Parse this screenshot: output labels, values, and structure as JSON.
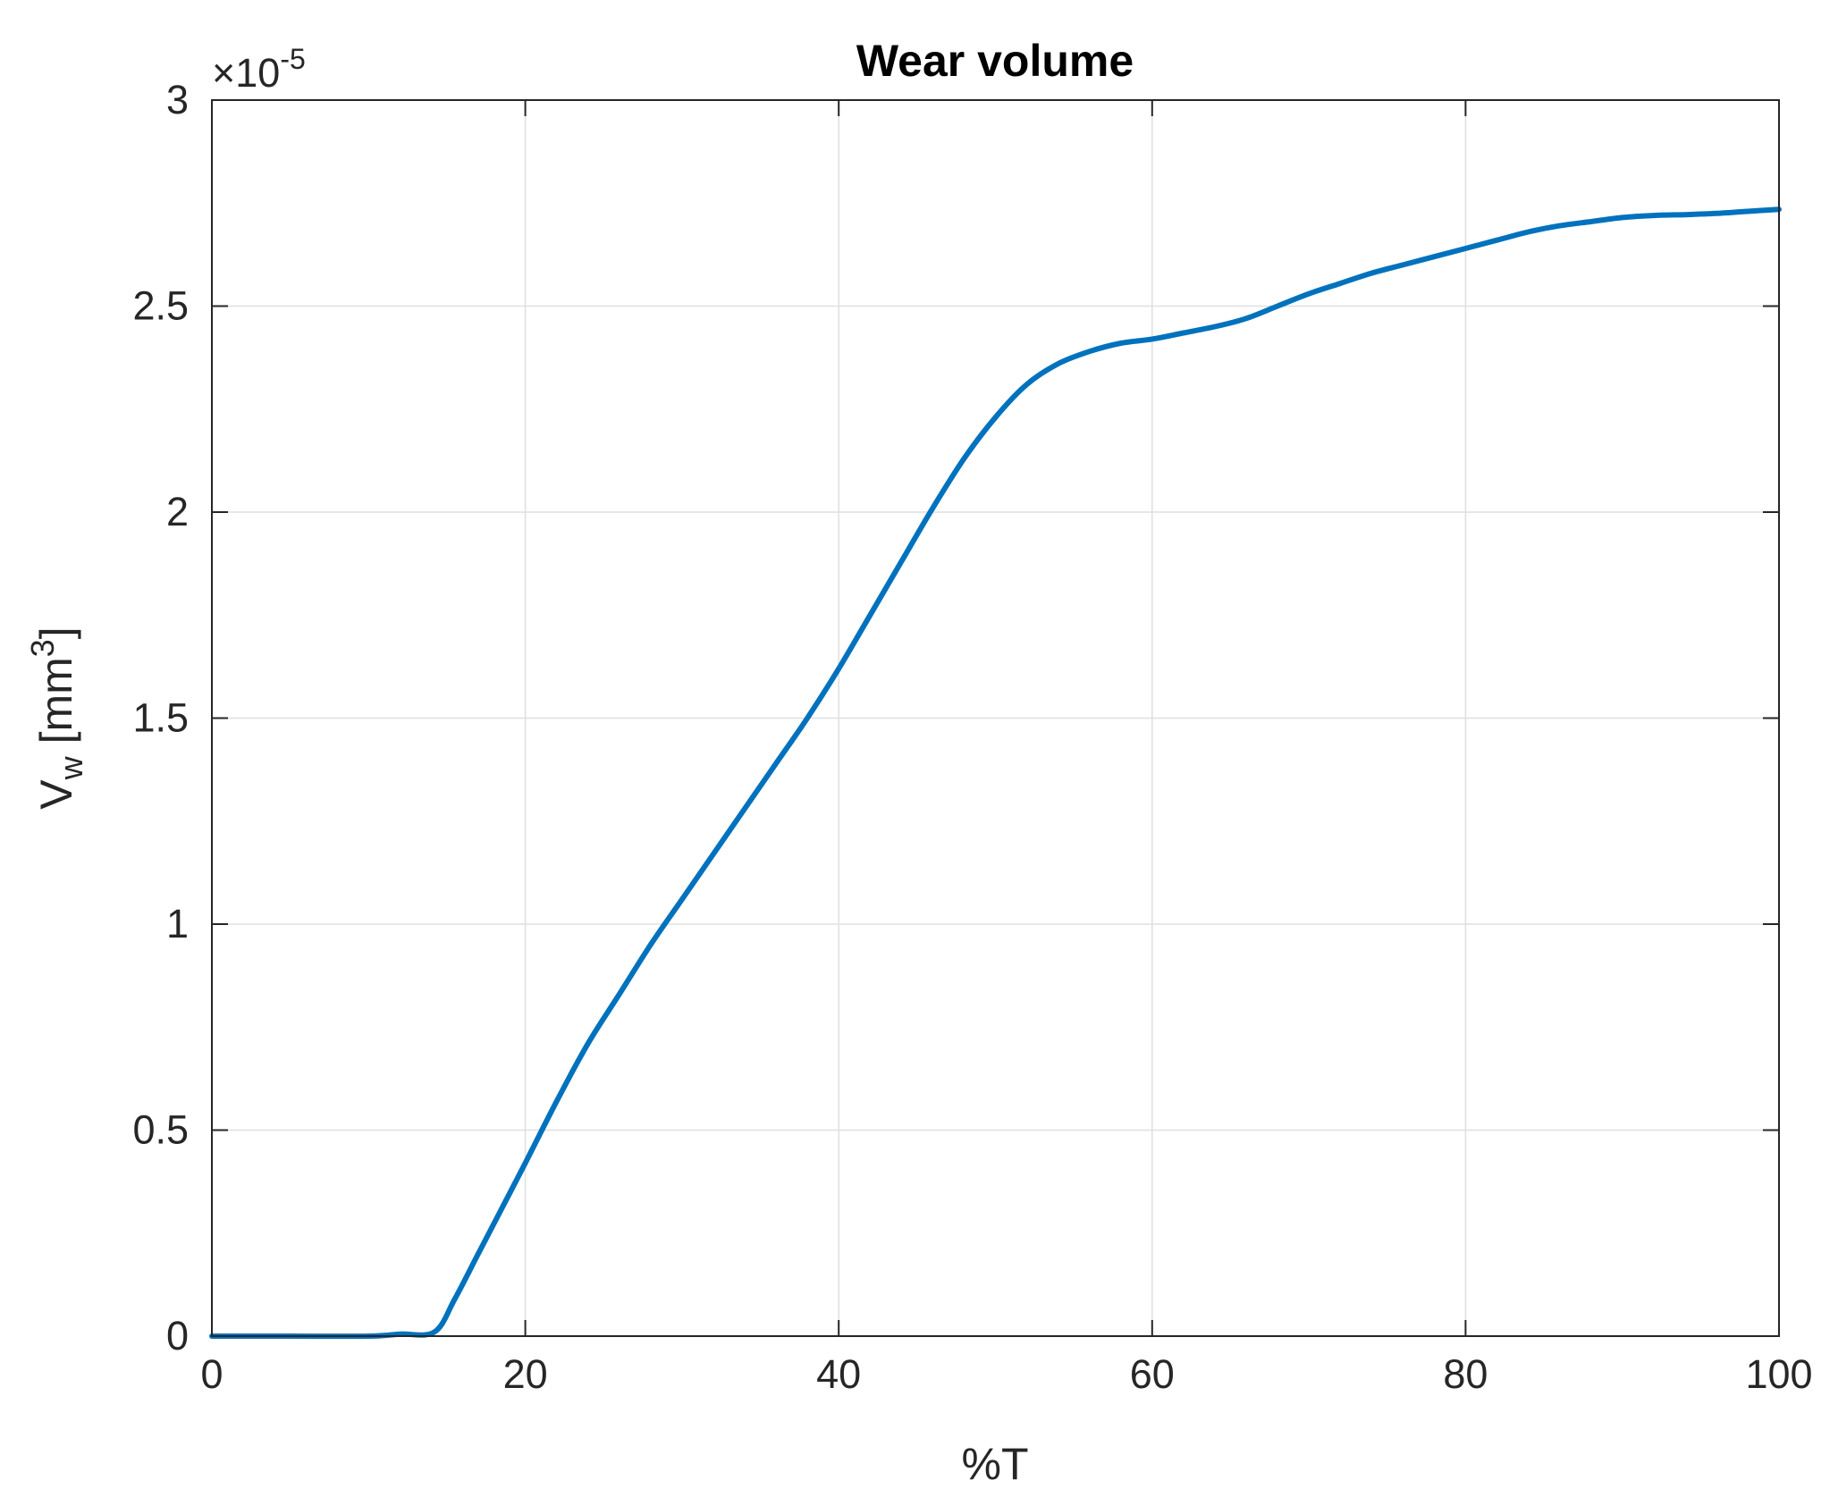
{
  "chart_data": {
    "type": "line",
    "title": "Wear volume",
    "xlabel": "%T",
    "ylabel": {
      "base": "V",
      "subscript": "w",
      "unit_prefix": " [mm",
      "unit_superscript": "3",
      "unit_suffix": "]"
    },
    "y_multiplier": {
      "prefix": "×10",
      "exponent": "-5"
    },
    "xlim": [
      0,
      100
    ],
    "ylim": [
      0,
      3
    ],
    "xticks": [
      0,
      20,
      40,
      60,
      80,
      100
    ],
    "xtick_labels": [
      "0",
      "20",
      "40",
      "60",
      "80",
      "100"
    ],
    "yticks": [
      0,
      0.5,
      1,
      1.5,
      2,
      2.5,
      3
    ],
    "ytick_labels": [
      "0",
      "0.5",
      "1",
      "1.5",
      "2",
      "2.5",
      "3"
    ],
    "grid": true,
    "series": [
      {
        "color": "#0072BD",
        "x": [
          0,
          5,
          10,
          12,
          14.2,
          15.5,
          17,
          18.5,
          20,
          22,
          24,
          26,
          28,
          30,
          32,
          34,
          36,
          38,
          40,
          42,
          44,
          46,
          48,
          50,
          52,
          54,
          56,
          58,
          60,
          62,
          64,
          66,
          68,
          70,
          72,
          74,
          76,
          78,
          80,
          82,
          84,
          86,
          88,
          90,
          92,
          94,
          96,
          98,
          100
        ],
        "y": [
          0,
          0,
          0,
          0.005,
          0.01,
          0.09,
          0.2,
          0.31,
          0.42,
          0.57,
          0.71,
          0.83,
          0.95,
          1.06,
          1.17,
          1.28,
          1.39,
          1.5,
          1.62,
          1.75,
          1.88,
          2.01,
          2.13,
          2.23,
          2.31,
          2.36,
          2.39,
          2.41,
          2.42,
          2.435,
          2.45,
          2.47,
          2.5,
          2.53,
          2.555,
          2.58,
          2.6,
          2.62,
          2.64,
          2.66,
          2.68,
          2.695,
          2.705,
          2.715,
          2.72,
          2.722,
          2.725,
          2.73,
          2.735
        ]
      }
    ]
  }
}
